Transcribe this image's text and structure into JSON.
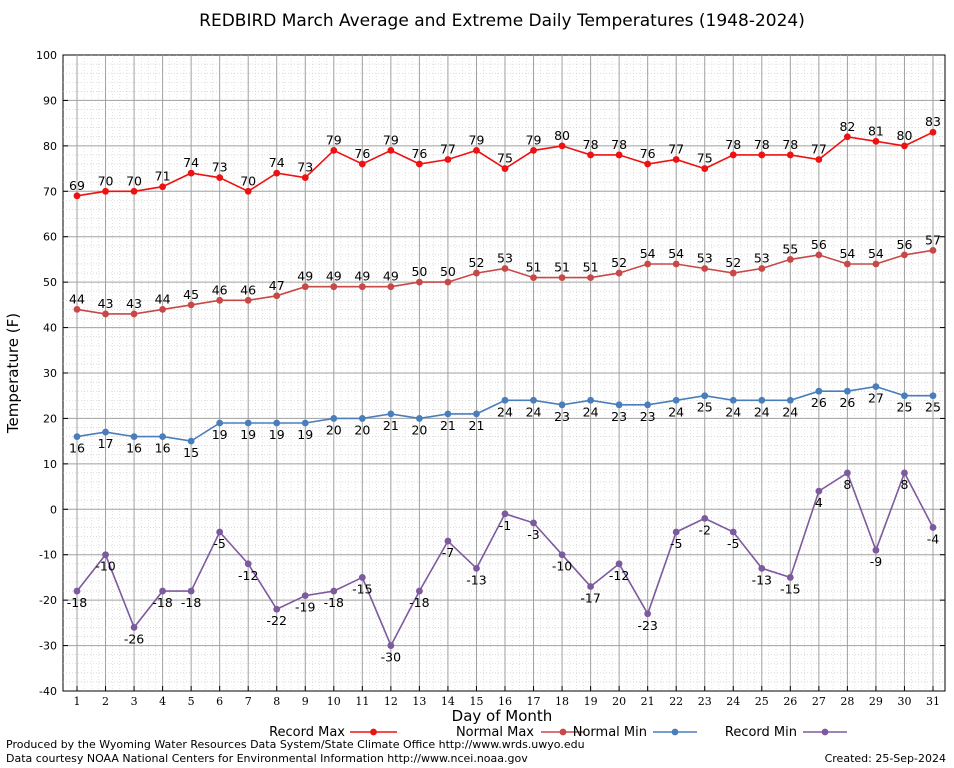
{
  "chart_data": {
    "type": "line",
    "title": "REDBIRD March Average and Extreme Daily Temperatures (1948-2024)",
    "xlabel": "Day of Month",
    "ylabel": "Temperature (F)",
    "ylim": [
      -40,
      100
    ],
    "yticks": [
      -40,
      -30,
      -20,
      -10,
      0,
      10,
      20,
      30,
      40,
      50,
      60,
      70,
      80,
      90,
      100
    ],
    "x": [
      1,
      2,
      3,
      4,
      5,
      6,
      7,
      8,
      9,
      10,
      11,
      12,
      13,
      14,
      15,
      16,
      17,
      18,
      19,
      20,
      21,
      22,
      23,
      24,
      25,
      26,
      27,
      28,
      29,
      30,
      31
    ],
    "grid": true,
    "legend_position": "bottom",
    "series": [
      {
        "name": "Record Max",
        "color": "#ee1111",
        "label_position": "above",
        "values": [
          69,
          70,
          70,
          71,
          74,
          73,
          70,
          74,
          73,
          79,
          76,
          79,
          76,
          77,
          79,
          75,
          79,
          80,
          78,
          78,
          76,
          77,
          75,
          78,
          78,
          78,
          77,
          82,
          81,
          80,
          83
        ]
      },
      {
        "name": "Normal Max",
        "color": "#c84848",
        "label_position": "above",
        "values": [
          44,
          43,
          43,
          44,
          45,
          46,
          46,
          47,
          49,
          49,
          49,
          49,
          50,
          50,
          52,
          53,
          51,
          51,
          51,
          52,
          54,
          54,
          53,
          52,
          53,
          55,
          56,
          54,
          54,
          56,
          57
        ]
      },
      {
        "name": "Normal Min",
        "color": "#4a7ebb",
        "label_position": "below",
        "values": [
          16,
          17,
          16,
          16,
          15,
          19,
          19,
          19,
          19,
          20,
          20,
          21,
          20,
          21,
          21,
          24,
          24,
          23,
          24,
          23,
          23,
          24,
          25,
          24,
          24,
          24,
          26,
          26,
          27,
          25,
          25
        ]
      },
      {
        "name": "Record Min",
        "color": "#7d5a9e",
        "label_position": "below",
        "values": [
          -18,
          -10,
          -26,
          -18,
          -18,
          -5,
          -12,
          -22,
          -19,
          -18,
          -15,
          -30,
          -18,
          -7,
          -13,
          -1,
          -3,
          -10,
          -17,
          -12,
          -23,
          -5,
          -2,
          -5,
          -13,
          -15,
          4,
          8,
          -9,
          8,
          -4
        ]
      }
    ]
  },
  "footer": {
    "produced_by": "Produced by the Wyoming Water Resources Data System/State Climate Office http://www.wrds.uwyo.edu",
    "data_courtesy": "Data courtesy NOAA National Centers for Environmental Information http://www.ncei.noaa.gov",
    "created": "Created: 25-Sep-2024"
  }
}
